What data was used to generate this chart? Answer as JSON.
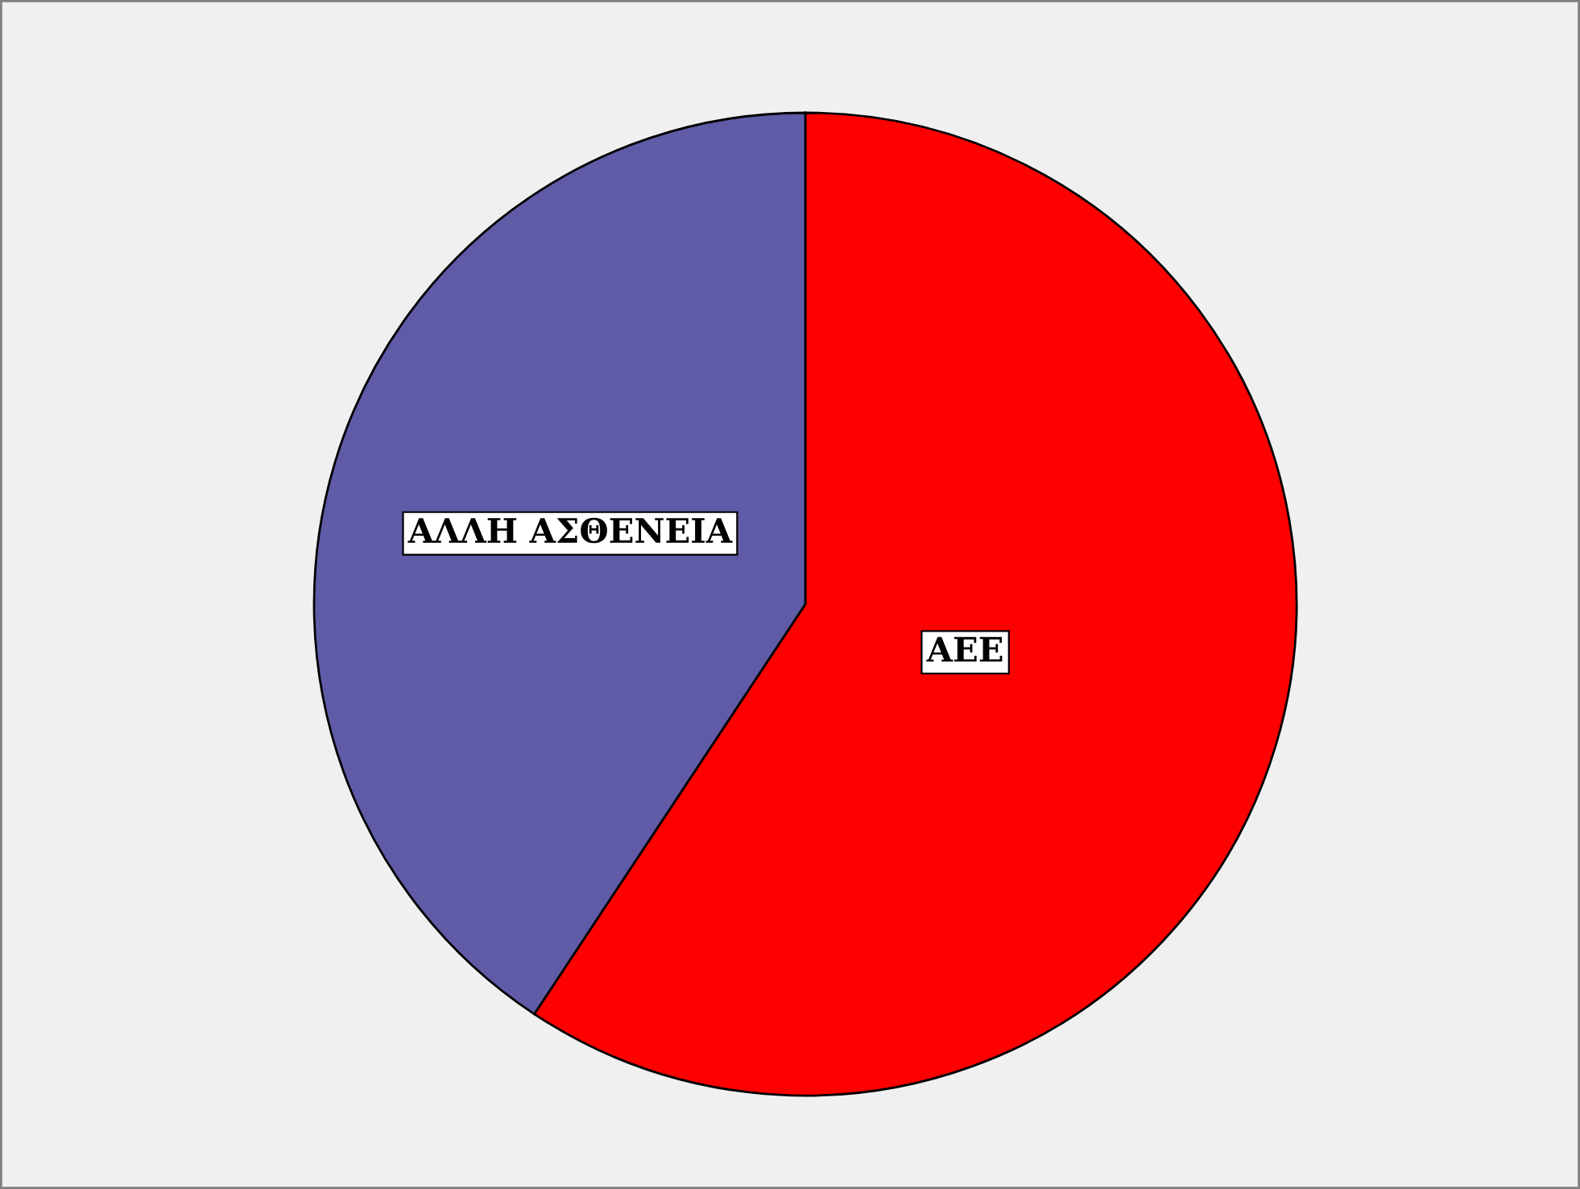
{
  "chart_data": {
    "type": "pie",
    "categories": [
      "ΑΕΕ",
      "ΑΛΛΗ ΑΣΘΕΝΕΙΑ"
    ],
    "values": [
      59.3,
      40.7
    ],
    "colors": [
      "#ff0000",
      "#5f5ba6"
    ]
  }
}
